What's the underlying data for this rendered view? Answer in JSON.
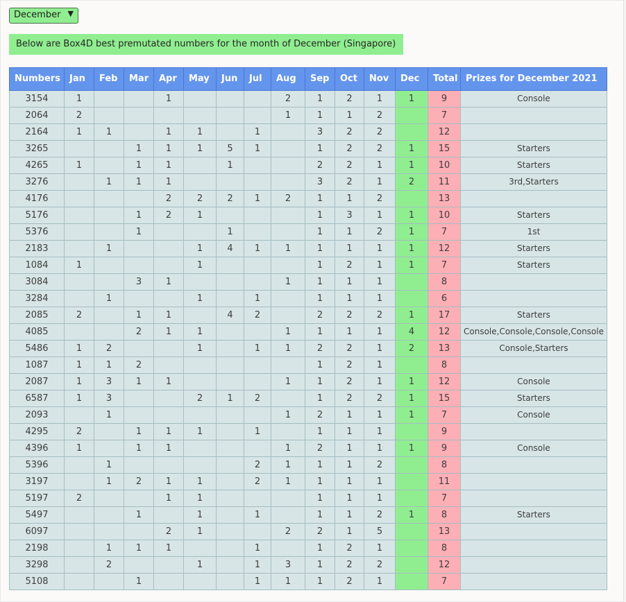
{
  "controls": {
    "month_select": {
      "options": [
        "December"
      ],
      "selected": "December"
    }
  },
  "banner": {
    "text": "Below are Box4D best premutated numbers for the month of December (Singapore)"
  },
  "table": {
    "columns": [
      "Numbers",
      "Jan",
      "Feb",
      "Mar",
      "Apr",
      "May",
      "Jun",
      "Jul",
      "Aug",
      "Sep",
      "Oct",
      "Nov",
      "Dec",
      "Total",
      "Prizes for December 2021"
    ],
    "rows": [
      {
        "number": "3154",
        "months": [
          "1",
          "",
          "",
          "1",
          "",
          "",
          "",
          "2",
          "1",
          "2",
          "1",
          "1"
        ],
        "total": "9",
        "prizes": "Console"
      },
      {
        "number": "2064",
        "months": [
          "2",
          "",
          "",
          "",
          "",
          "",
          "",
          "1",
          "1",
          "1",
          "2",
          ""
        ],
        "total": "7",
        "prizes": ""
      },
      {
        "number": "2164",
        "months": [
          "1",
          "1",
          "",
          "1",
          "1",
          "",
          "1",
          "",
          "3",
          "2",
          "2",
          ""
        ],
        "total": "12",
        "prizes": ""
      },
      {
        "number": "3265",
        "months": [
          "",
          "",
          "1",
          "1",
          "1",
          "5",
          "1",
          "",
          "1",
          "2",
          "2",
          "1"
        ],
        "total": "15",
        "prizes": "Starters"
      },
      {
        "number": "4265",
        "months": [
          "1",
          "",
          "1",
          "1",
          "",
          "1",
          "",
          "",
          "2",
          "2",
          "1",
          "1"
        ],
        "total": "10",
        "prizes": "Starters"
      },
      {
        "number": "3276",
        "months": [
          "",
          "1",
          "1",
          "1",
          "",
          "",
          "",
          "",
          "3",
          "2",
          "1",
          "2"
        ],
        "total": "11",
        "prizes": "3rd,Starters"
      },
      {
        "number": "4176",
        "months": [
          "",
          "",
          "",
          "2",
          "2",
          "2",
          "1",
          "2",
          "1",
          "1",
          "2",
          ""
        ],
        "total": "13",
        "prizes": ""
      },
      {
        "number": "5176",
        "months": [
          "",
          "",
          "1",
          "2",
          "1",
          "",
          "",
          "",
          "1",
          "3",
          "1",
          "1"
        ],
        "total": "10",
        "prizes": "Starters"
      },
      {
        "number": "5376",
        "months": [
          "",
          "",
          "1",
          "",
          "",
          "1",
          "",
          "",
          "1",
          "1",
          "2",
          "1"
        ],
        "total": "7",
        "prizes": "1st"
      },
      {
        "number": "2183",
        "months": [
          "",
          "1",
          "",
          "",
          "1",
          "4",
          "1",
          "1",
          "1",
          "1",
          "1",
          "1"
        ],
        "total": "12",
        "prizes": "Starters"
      },
      {
        "number": "1084",
        "months": [
          "1",
          "",
          "",
          "",
          "1",
          "",
          "",
          "",
          "1",
          "2",
          "1",
          "1"
        ],
        "total": "7",
        "prizes": "Starters"
      },
      {
        "number": "3084",
        "months": [
          "",
          "",
          "3",
          "1",
          "",
          "",
          "",
          "1",
          "1",
          "1",
          "1",
          ""
        ],
        "total": "8",
        "prizes": ""
      },
      {
        "number": "3284",
        "months": [
          "",
          "1",
          "",
          "",
          "1",
          "",
          "1",
          "",
          "1",
          "1",
          "1",
          ""
        ],
        "total": "6",
        "prizes": ""
      },
      {
        "number": "2085",
        "months": [
          "2",
          "",
          "1",
          "1",
          "",
          "4",
          "2",
          "",
          "2",
          "2",
          "2",
          "1"
        ],
        "total": "17",
        "prizes": "Starters"
      },
      {
        "number": "4085",
        "months": [
          "",
          "",
          "2",
          "1",
          "1",
          "",
          "",
          "1",
          "1",
          "1",
          "1",
          "4"
        ],
        "total": "12",
        "prizes": "Console,Console,Console,Console"
      },
      {
        "number": "5486",
        "months": [
          "1",
          "2",
          "",
          "",
          "1",
          "",
          "1",
          "1",
          "2",
          "2",
          "1",
          "2"
        ],
        "total": "13",
        "prizes": "Console,Starters"
      },
      {
        "number": "1087",
        "months": [
          "1",
          "1",
          "2",
          "",
          "",
          "",
          "",
          "",
          "1",
          "2",
          "1",
          ""
        ],
        "total": "8",
        "prizes": ""
      },
      {
        "number": "2087",
        "months": [
          "1",
          "3",
          "1",
          "1",
          "",
          "",
          "",
          "1",
          "1",
          "2",
          "1",
          "1"
        ],
        "total": "12",
        "prizes": "Console"
      },
      {
        "number": "6587",
        "months": [
          "1",
          "3",
          "",
          "",
          "2",
          "1",
          "2",
          "",
          "1",
          "2",
          "2",
          "1"
        ],
        "total": "15",
        "prizes": "Starters"
      },
      {
        "number": "2093",
        "months": [
          "",
          "1",
          "",
          "",
          "",
          "",
          "",
          "1",
          "2",
          "1",
          "1",
          "1"
        ],
        "total": "7",
        "prizes": "Console"
      },
      {
        "number": "4295",
        "months": [
          "2",
          "",
          "1",
          "1",
          "1",
          "",
          "1",
          "",
          "1",
          "1",
          "1",
          ""
        ],
        "total": "9",
        "prizes": ""
      },
      {
        "number": "4396",
        "months": [
          "1",
          "",
          "1",
          "1",
          "",
          "",
          "",
          "1",
          "2",
          "1",
          "1",
          "1"
        ],
        "total": "9",
        "prizes": "Console"
      },
      {
        "number": "5396",
        "months": [
          "",
          "1",
          "",
          "",
          "",
          "",
          "2",
          "1",
          "1",
          "1",
          "2",
          ""
        ],
        "total": "8",
        "prizes": ""
      },
      {
        "number": "3197",
        "months": [
          "",
          "1",
          "2",
          "1",
          "1",
          "",
          "2",
          "1",
          "1",
          "1",
          "1",
          ""
        ],
        "total": "11",
        "prizes": ""
      },
      {
        "number": "5197",
        "months": [
          "2",
          "",
          "",
          "1",
          "1",
          "",
          "",
          "",
          "1",
          "1",
          "1",
          ""
        ],
        "total": "7",
        "prizes": ""
      },
      {
        "number": "5497",
        "months": [
          "",
          "",
          "1",
          "",
          "1",
          "",
          "1",
          "",
          "1",
          "1",
          "2",
          "1"
        ],
        "total": "8",
        "prizes": "Starters"
      },
      {
        "number": "6097",
        "months": [
          "",
          "",
          "",
          "2",
          "1",
          "",
          "",
          "2",
          "2",
          "1",
          "5",
          ""
        ],
        "total": "13",
        "prizes": ""
      },
      {
        "number": "2198",
        "months": [
          "",
          "1",
          "1",
          "1",
          "",
          "",
          "1",
          "",
          "1",
          "2",
          "1",
          ""
        ],
        "total": "8",
        "prizes": ""
      },
      {
        "number": "3298",
        "months": [
          "",
          "2",
          "",
          "",
          "1",
          "",
          "1",
          "3",
          "1",
          "2",
          "2",
          ""
        ],
        "total": "12",
        "prizes": ""
      },
      {
        "number": "5108",
        "months": [
          "",
          "",
          "1",
          "",
          "",
          "",
          "1",
          "1",
          "1",
          "2",
          "1",
          ""
        ],
        "total": "7",
        "prizes": ""
      }
    ]
  },
  "theme": {
    "header_bg": "#6495ED",
    "header_text": "#FFFFFF",
    "header_border": "#4A77D4",
    "row_bg": "#D8E5E7",
    "cell_border": "#A4BDC1",
    "dec_bg": "#90EE90",
    "total_bg": "#FCAFB5",
    "banner_bg": "#90EE90",
    "text": "#3C3C3C"
  }
}
